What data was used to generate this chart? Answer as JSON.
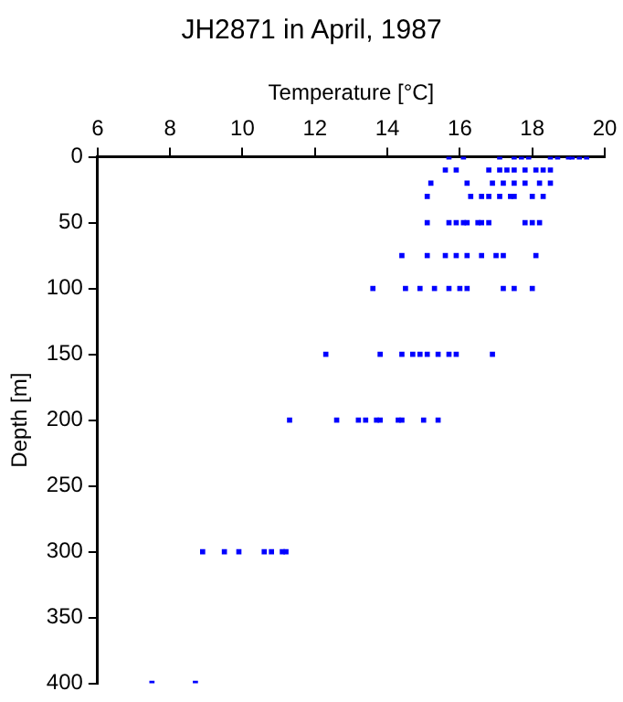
{
  "chart_data": {
    "type": "scatter",
    "title": "JH2871 in April, 1987",
    "xlabel": "Temperature [°C]",
    "ylabel": "Depth [m]",
    "xlim": [
      6,
      20
    ],
    "xticks": [
      6,
      8,
      10,
      12,
      14,
      16,
      18,
      20
    ],
    "ylim": [
      400,
      0
    ],
    "yticks": [
      0,
      50,
      100,
      150,
      200,
      250,
      300,
      350,
      400
    ],
    "grid": false,
    "legend": false,
    "marker": "square",
    "series": [
      {
        "color": "#0000ff",
        "x": [
          15.7,
          16.1,
          17.1,
          17.5,
          17.7,
          17.9,
          18.5,
          18.7,
          19.0,
          19.1,
          19.3,
          19.5,
          15.6,
          15.9,
          16.8,
          17.1,
          17.3,
          17.5,
          17.8,
          18.1,
          18.3,
          18.5,
          15.2,
          16.2,
          16.9,
          17.2,
          17.5,
          17.8,
          18.2,
          18.5,
          15.1,
          16.3,
          16.6,
          16.8,
          17.1,
          17.4,
          17.5,
          18.0,
          18.3,
          15.1,
          15.7,
          15.9,
          16.1,
          16.2,
          16.5,
          16.6,
          16.8,
          17.8,
          18.0,
          18.2,
          14.4,
          15.1,
          15.6,
          15.9,
          16.2,
          16.6,
          17.0,
          17.2,
          18.1,
          13.6,
          14.5,
          14.9,
          15.3,
          15.7,
          16.0,
          16.2,
          17.2,
          17.5,
          18.0,
          12.3,
          13.8,
          14.4,
          14.7,
          14.9,
          15.1,
          15.4,
          15.7,
          15.9,
          16.9,
          11.3,
          12.6,
          13.2,
          13.4,
          13.7,
          13.8,
          14.3,
          14.4,
          15.0,
          15.4,
          8.9,
          9.5,
          9.9,
          10.6,
          10.8,
          11.1,
          11.2,
          7.5,
          8.7
        ],
        "values": [
          0,
          0,
          0,
          0,
          0,
          0,
          0,
          0,
          0,
          0,
          0,
          0,
          10,
          10,
          10,
          10,
          10,
          10,
          10,
          10,
          10,
          10,
          20,
          20,
          20,
          20,
          20,
          20,
          20,
          20,
          30,
          30,
          30,
          30,
          30,
          30,
          30,
          30,
          30,
          50,
          50,
          50,
          50,
          50,
          50,
          50,
          50,
          50,
          50,
          50,
          75,
          75,
          75,
          75,
          75,
          75,
          75,
          75,
          75,
          100,
          100,
          100,
          100,
          100,
          100,
          100,
          100,
          100,
          100,
          150,
          150,
          150,
          150,
          150,
          150,
          150,
          150,
          150,
          150,
          200,
          200,
          200,
          200,
          200,
          200,
          200,
          200,
          200,
          200,
          300,
          300,
          300,
          300,
          300,
          300,
          300,
          400,
          400
        ]
      }
    ]
  }
}
